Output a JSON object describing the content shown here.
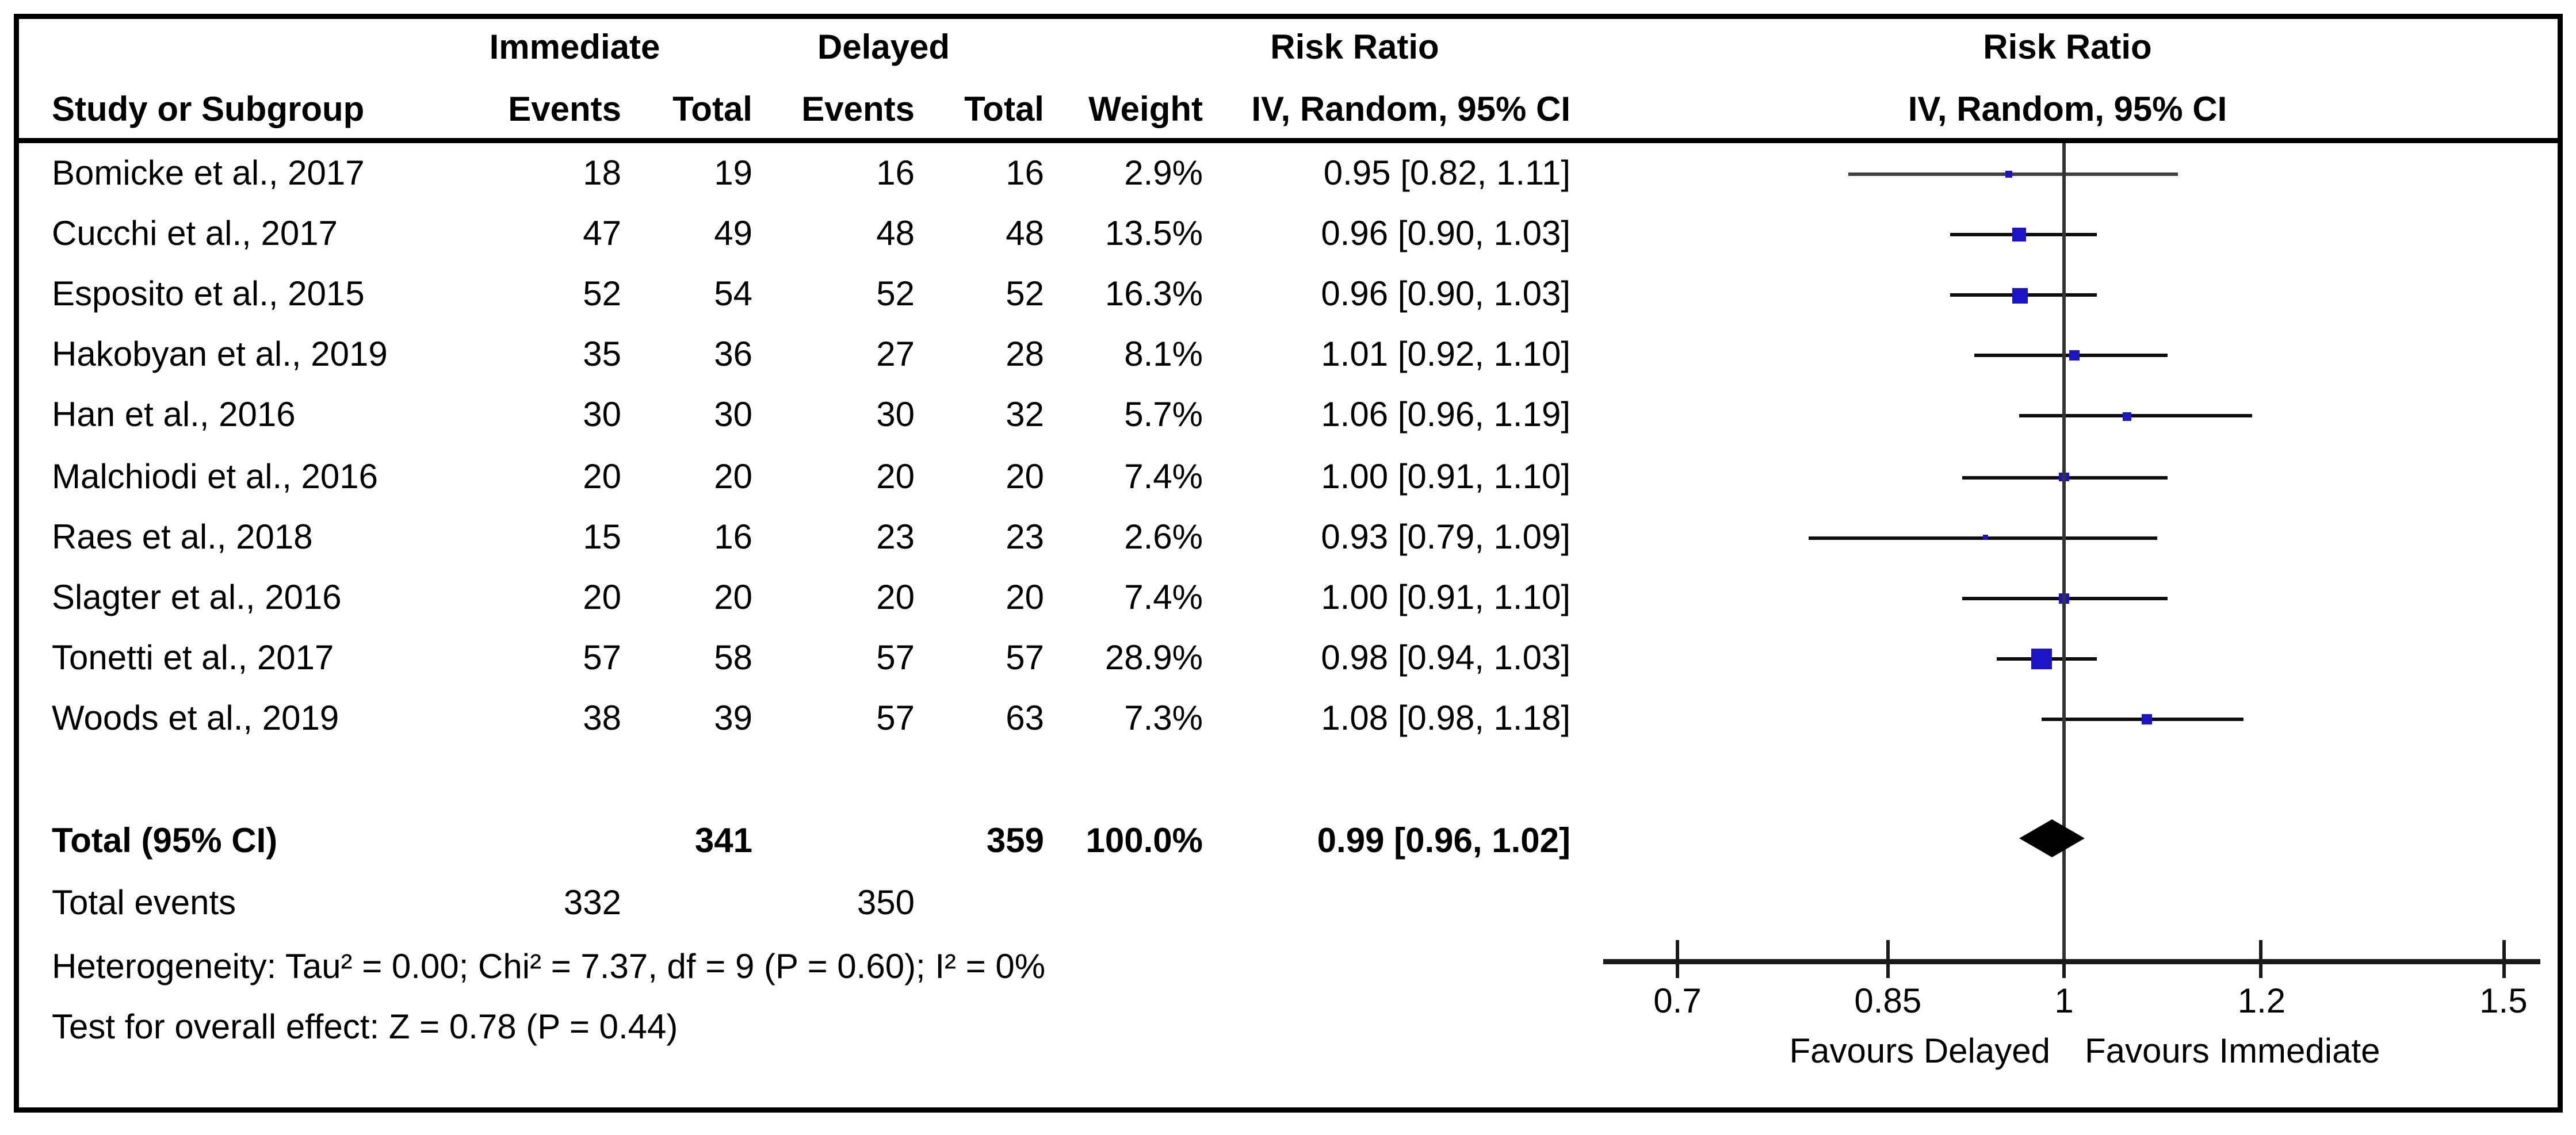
{
  "header": {
    "study_col": "Study or Subgroup",
    "group_immediate": "Immediate",
    "group_delayed": "Delayed",
    "events_col_immediate": "Events",
    "total_col_immediate": "Total",
    "events_col_delayed": "Events",
    "total_col_delayed": "Total",
    "weight_col": "Weight",
    "effect_col_title": "Risk Ratio",
    "effect_col_sub": "IV, Random, 95% CI",
    "plot_col_title": "Risk Ratio",
    "plot_col_sub": "IV, Random, 95% CI"
  },
  "chart_data": {
    "type": "forest",
    "effect_measure": "Risk Ratio",
    "model": "IV, Random, 95% CI",
    "studies": [
      {
        "name": "Bomicke et al., 2017",
        "immediate_events": 18,
        "immediate_total": 19,
        "delayed_events": 16,
        "delayed_total": 16,
        "weight": "2.9%",
        "weight_value": 2.9,
        "rr": 0.95,
        "ci_low": 0.82,
        "ci_high": 1.11,
        "rr_ci_label": "0.95 [0.82, 1.11]"
      },
      {
        "name": "Cucchi et al., 2017",
        "immediate_events": 47,
        "immediate_total": 49,
        "delayed_events": 48,
        "delayed_total": 48,
        "weight": "13.5%",
        "weight_value": 13.5,
        "rr": 0.96,
        "ci_low": 0.9,
        "ci_high": 1.03,
        "rr_ci_label": "0.96 [0.90, 1.03]"
      },
      {
        "name": "Esposito et al., 2015",
        "immediate_events": 52,
        "immediate_total": 54,
        "delayed_events": 52,
        "delayed_total": 52,
        "weight": "16.3%",
        "weight_value": 16.3,
        "rr": 0.96,
        "ci_low": 0.9,
        "ci_high": 1.03,
        "rr_ci_label": "0.96 [0.90, 1.03]"
      },
      {
        "name": "Hakobyan et al., 2019",
        "immediate_events": 35,
        "immediate_total": 36,
        "delayed_events": 27,
        "delayed_total": 28,
        "weight": "8.1%",
        "weight_value": 8.1,
        "rr": 1.01,
        "ci_low": 0.92,
        "ci_high": 1.1,
        "rr_ci_label": "1.01 [0.92, 1.10]"
      },
      {
        "name": "Han et al., 2016",
        "immediate_events": 30,
        "immediate_total": 30,
        "delayed_events": 30,
        "delayed_total": 32,
        "weight": "5.7%",
        "weight_value": 5.7,
        "rr": 1.06,
        "ci_low": 0.96,
        "ci_high": 1.19,
        "rr_ci_label": "1.06 [0.96, 1.19]"
      },
      {
        "name": "Malchiodi et al., 2016",
        "immediate_events": 20,
        "immediate_total": 20,
        "delayed_events": 20,
        "delayed_total": 20,
        "weight": "7.4%",
        "weight_value": 7.4,
        "rr": 1.0,
        "ci_low": 0.91,
        "ci_high": 1.1,
        "rr_ci_label": "1.00 [0.91, 1.10]"
      },
      {
        "name": "Raes et al., 2018",
        "immediate_events": 15,
        "immediate_total": 16,
        "delayed_events": 23,
        "delayed_total": 23,
        "weight": "2.6%",
        "weight_value": 2.6,
        "rr": 0.93,
        "ci_low": 0.79,
        "ci_high": 1.09,
        "rr_ci_label": "0.93 [0.79, 1.09]"
      },
      {
        "name": "Slagter et al., 2016",
        "immediate_events": 20,
        "immediate_total": 20,
        "delayed_events": 20,
        "delayed_total": 20,
        "weight": "7.4%",
        "weight_value": 7.4,
        "rr": 1.0,
        "ci_low": 0.91,
        "ci_high": 1.1,
        "rr_ci_label": "1.00 [0.91, 1.10]"
      },
      {
        "name": "Tonetti et al., 2017",
        "immediate_events": 57,
        "immediate_total": 58,
        "delayed_events": 57,
        "delayed_total": 57,
        "weight": "28.9%",
        "weight_value": 28.9,
        "rr": 0.98,
        "ci_low": 0.94,
        "ci_high": 1.03,
        "rr_ci_label": "0.98 [0.94, 1.03]"
      },
      {
        "name": "Woods et al., 2019",
        "immediate_events": 38,
        "immediate_total": 39,
        "delayed_events": 57,
        "delayed_total": 63,
        "weight": "7.3%",
        "weight_value": 7.3,
        "rr": 1.08,
        "ci_low": 0.98,
        "ci_high": 1.18,
        "rr_ci_label": "1.08 [0.98, 1.18]"
      }
    ],
    "total": {
      "label": "Total (95% CI)",
      "immediate_total": 341,
      "delayed_total": 359,
      "weight": "100.0%",
      "rr": 0.99,
      "ci_low": 0.96,
      "ci_high": 1.02,
      "rr_ci_label": "0.99 [0.96, 1.02]"
    },
    "total_events": {
      "label": "Total events",
      "immediate": 332,
      "delayed": 350
    },
    "heterogeneity": "Heterogeneity: Tau² = 0.00; Chi² = 7.37, df = 9 (P = 0.60); I² = 0%",
    "overall_effect": "Test for overall effect: Z = 0.78 (P = 0.44)",
    "axis": {
      "scale": "log",
      "tick_values": [
        0.7,
        0.85,
        1,
        1.2,
        1.5
      ],
      "tick_labels": [
        "0.7",
        "0.85",
        "1",
        "1.2",
        "1.5"
      ],
      "null_value": 1
    },
    "footer": {
      "left": "Favours Delayed",
      "right": "Favours Immediate"
    },
    "colors": {
      "marker": "#1c13c7",
      "ci_line": "#0d0d0d",
      "ci_line_first_study": "#3f3f3f",
      "diamond": "#000000",
      "axis": "#1a1a1a",
      "null_line": "#333333"
    }
  }
}
